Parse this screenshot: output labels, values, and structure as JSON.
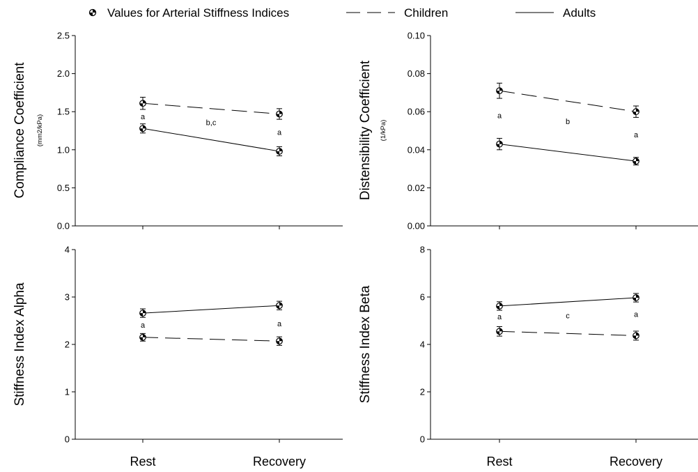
{
  "legend": {
    "marker_label": "Values for Arterial Stiffness Indices",
    "dashed_label": "Children",
    "solid_label": "Adults"
  },
  "colors": {
    "ink": "#000000",
    "marker_fill": "#ffffff"
  },
  "chart_data": [
    {
      "type": "line",
      "ylabel": "Compliance Coefficient",
      "yunit": "(mm2/kPa)",
      "categories": [
        "Rest",
        "Recovery"
      ],
      "ylim": [
        0,
        2.5
      ],
      "yticks": [
        "0.0",
        "0.5",
        "1.0",
        "1.5",
        "2.0",
        "2.5"
      ],
      "series": [
        {
          "name": "Children",
          "style": "dashed",
          "values": [
            1.61,
            1.47
          ],
          "errors": [
            0.08,
            0.07
          ]
        },
        {
          "name": "Adults",
          "style": "solid",
          "values": [
            1.28,
            0.98
          ],
          "errors": [
            0.06,
            0.06
          ]
        }
      ],
      "annotations": [
        {
          "text": "a",
          "x": 0,
          "y": 1.44
        },
        {
          "text": "b,c",
          "x": 0.5,
          "y": 1.36
        },
        {
          "text": "a",
          "x": 1,
          "y": 1.23
        }
      ]
    },
    {
      "type": "line",
      "ylabel": "Distensibility Coefficient",
      "yunit": "(1/kPa)",
      "categories": [
        "Rest",
        "Recovery"
      ],
      "ylim": [
        0,
        0.1
      ],
      "yticks": [
        "0.00",
        "0.02",
        "0.04",
        "0.06",
        "0.08",
        "0.10"
      ],
      "series": [
        {
          "name": "Children",
          "style": "dashed",
          "values": [
            0.071,
            0.06
          ],
          "errors": [
            0.004,
            0.003
          ]
        },
        {
          "name": "Adults",
          "style": "solid",
          "values": [
            0.043,
            0.034
          ],
          "errors": [
            0.003,
            0.002
          ]
        }
      ],
      "annotations": [
        {
          "text": "a",
          "x": 0,
          "y": 0.058
        },
        {
          "text": "b",
          "x": 0.5,
          "y": 0.055
        },
        {
          "text": "a",
          "x": 1,
          "y": 0.048
        }
      ]
    },
    {
      "type": "line",
      "ylabel": "Stiffness Index Alpha",
      "yunit": "",
      "categories": [
        "Rest",
        "Recovery"
      ],
      "ylim": [
        0,
        4
      ],
      "yticks": [
        "0",
        "1",
        "2",
        "3",
        "4"
      ],
      "series": [
        {
          "name": "Adults",
          "style": "solid",
          "values": [
            2.66,
            2.82
          ],
          "errors": [
            0.09,
            0.09
          ]
        },
        {
          "name": "Children",
          "style": "dashed",
          "values": [
            2.15,
            2.07
          ],
          "errors": [
            0.08,
            0.09
          ]
        }
      ],
      "annotations": [
        {
          "text": "a",
          "x": 0,
          "y": 2.41
        },
        {
          "text": "a",
          "x": 1,
          "y": 2.44
        }
      ]
    },
    {
      "type": "line",
      "ylabel": "Stiffness Index Beta",
      "yunit": "",
      "categories": [
        "Rest",
        "Recovery"
      ],
      "ylim": [
        0,
        8
      ],
      "yticks": [
        "0",
        "2",
        "4",
        "6",
        "8"
      ],
      "series": [
        {
          "name": "Adults",
          "style": "solid",
          "values": [
            5.62,
            5.97
          ],
          "errors": [
            0.18,
            0.18
          ]
        },
        {
          "name": "Children",
          "style": "dashed",
          "values": [
            4.55,
            4.37
          ],
          "errors": [
            0.2,
            0.19
          ]
        }
      ],
      "annotations": [
        {
          "text": "a",
          "x": 0,
          "y": 5.18
        },
        {
          "text": "c",
          "x": 0.5,
          "y": 5.22
        },
        {
          "text": "a",
          "x": 1,
          "y": 5.28
        }
      ]
    }
  ]
}
